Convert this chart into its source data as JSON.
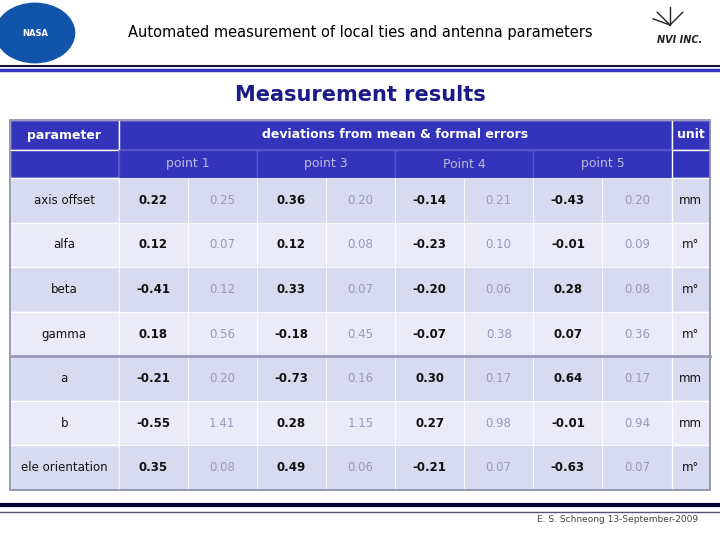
{
  "title": "Measurement results",
  "subtitle_text": "Automated measurement of local ties and antenna parameters",
  "header_sub": [
    "point 1",
    "point 3",
    "Point 4",
    "point 5"
  ],
  "rows": [
    [
      "axis offset",
      "0.22",
      "0.25",
      "0.36",
      "0.20",
      "-0.14",
      "0.21",
      "-0.43",
      "0.20",
      "mm"
    ],
    [
      "alfa",
      "0.12",
      "0.07",
      "0.12",
      "0.08",
      "-0.23",
      "0.10",
      "-0.01",
      "0.09",
      "m°"
    ],
    [
      "beta",
      "-0.41",
      "0.12",
      "0.33",
      "0.07",
      "-0.20",
      "0.06",
      "0.28",
      "0.08",
      "m°"
    ],
    [
      "gamma",
      "0.18",
      "0.56",
      "-0.18",
      "0.45",
      "-0.07",
      "0.38",
      "0.07",
      "0.36",
      "m°"
    ],
    [
      "a",
      "-0.21",
      "0.20",
      "-0.73",
      "0.16",
      "0.30",
      "0.17",
      "0.64",
      "0.17",
      "mm"
    ],
    [
      "b",
      "-0.55",
      "1.41",
      "0.28",
      "1.15",
      "0.27",
      "0.98",
      "-0.01",
      "0.94",
      "mm"
    ],
    [
      "ele orientation",
      "0.35",
      "0.08",
      "0.49",
      "0.06",
      "-0.21",
      "0.07",
      "-0.63",
      "0.07",
      "m°"
    ]
  ],
  "header_bg": "#3333bb",
  "header_fg": "#ffffff",
  "subheader_fg": "#bbbbdd",
  "row_odd_bg": "#d8daf0",
  "row_even_bg": "#eaeaf8",
  "row_fg_bold": "#111111",
  "row_fg_light": "#9999bb",
  "bg_color": "#ffffff",
  "footer_text": "E. S. Schneong 13-September-2009",
  "title_color": "#1a1a88",
  "top_bar_line_color": "#000033",
  "bottom_bar_color": "#000033"
}
